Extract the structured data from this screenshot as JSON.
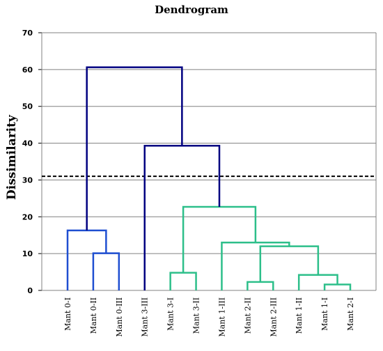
{
  "chart_data": {
    "type": "dendrogram",
    "title": "Dendrogram",
    "xlabel": "",
    "ylabel": "Dissimilarity",
    "ylim": [
      0,
      70
    ],
    "yticks": [
      0,
      10,
      20,
      30,
      40,
      50,
      60,
      70
    ],
    "grid": true,
    "leaves": [
      "Mant 0-I",
      "Mant 0-II",
      "Mant 0-III",
      "Mant 3-III",
      "Mant 3-I",
      "Mant 3-II",
      "Mant 1-III",
      "Mant 2-II",
      "Mant 2-III",
      "Mant 1-II",
      "Mant 1-I",
      "Mant 2-I"
    ],
    "threshold": 31,
    "colors": {
      "cluster_a": "#1f4fd1",
      "cluster_b": "#2dbf8a",
      "upper": "#000080",
      "threshold": "#000000",
      "grid": "#808080"
    },
    "merges": [
      {
        "a": "Mant 1-I",
        "b": "Mant 2-I",
        "height": 1.6,
        "color": "cluster_b"
      },
      {
        "a": "Mant 2-II",
        "b": "Mant 2-III",
        "height": 2.3,
        "color": "cluster_b"
      },
      {
        "a": "Mant 1-II",
        "b": "(Mant 1-I, Mant 2-I)",
        "height": 4.2,
        "color": "cluster_b"
      },
      {
        "a": "Mant 3-I",
        "b": "Mant 3-II",
        "height": 4.8,
        "color": "cluster_b"
      },
      {
        "a": "Mant 0-II",
        "b": "Mant 0-III",
        "height": 10.1,
        "color": "cluster_a"
      },
      {
        "a": "(Mant 2-II, Mant 2-III)",
        "b": "(Mant 1-II, Mant 1-I, Mant 2-I)",
        "height": 12.0,
        "color": "cluster_b"
      },
      {
        "a": "Mant 1-III",
        "b": "(Mant 2-II ... Mant 2-I)",
        "height": 13.0,
        "color": "cluster_b"
      },
      {
        "a": "Mant 0-I",
        "b": "(Mant 0-II, Mant 0-III)",
        "height": 16.3,
        "color": "cluster_a"
      },
      {
        "a": "(Mant 3-I, Mant 3-II)",
        "b": "(Mant 1-III ... Mant 2-I)",
        "height": 22.7,
        "color": "cluster_b"
      },
      {
        "a": "Mant 3-III",
        "b": "(Mant 3-I ... Mant 2-I)",
        "height": 39.3,
        "color": "upper"
      },
      {
        "a": "(Mant 0-I, Mant 0-II, Mant 0-III)",
        "b": "(Mant 3-III ... Mant 2-I)",
        "height": 60.6,
        "color": "upper"
      }
    ]
  }
}
